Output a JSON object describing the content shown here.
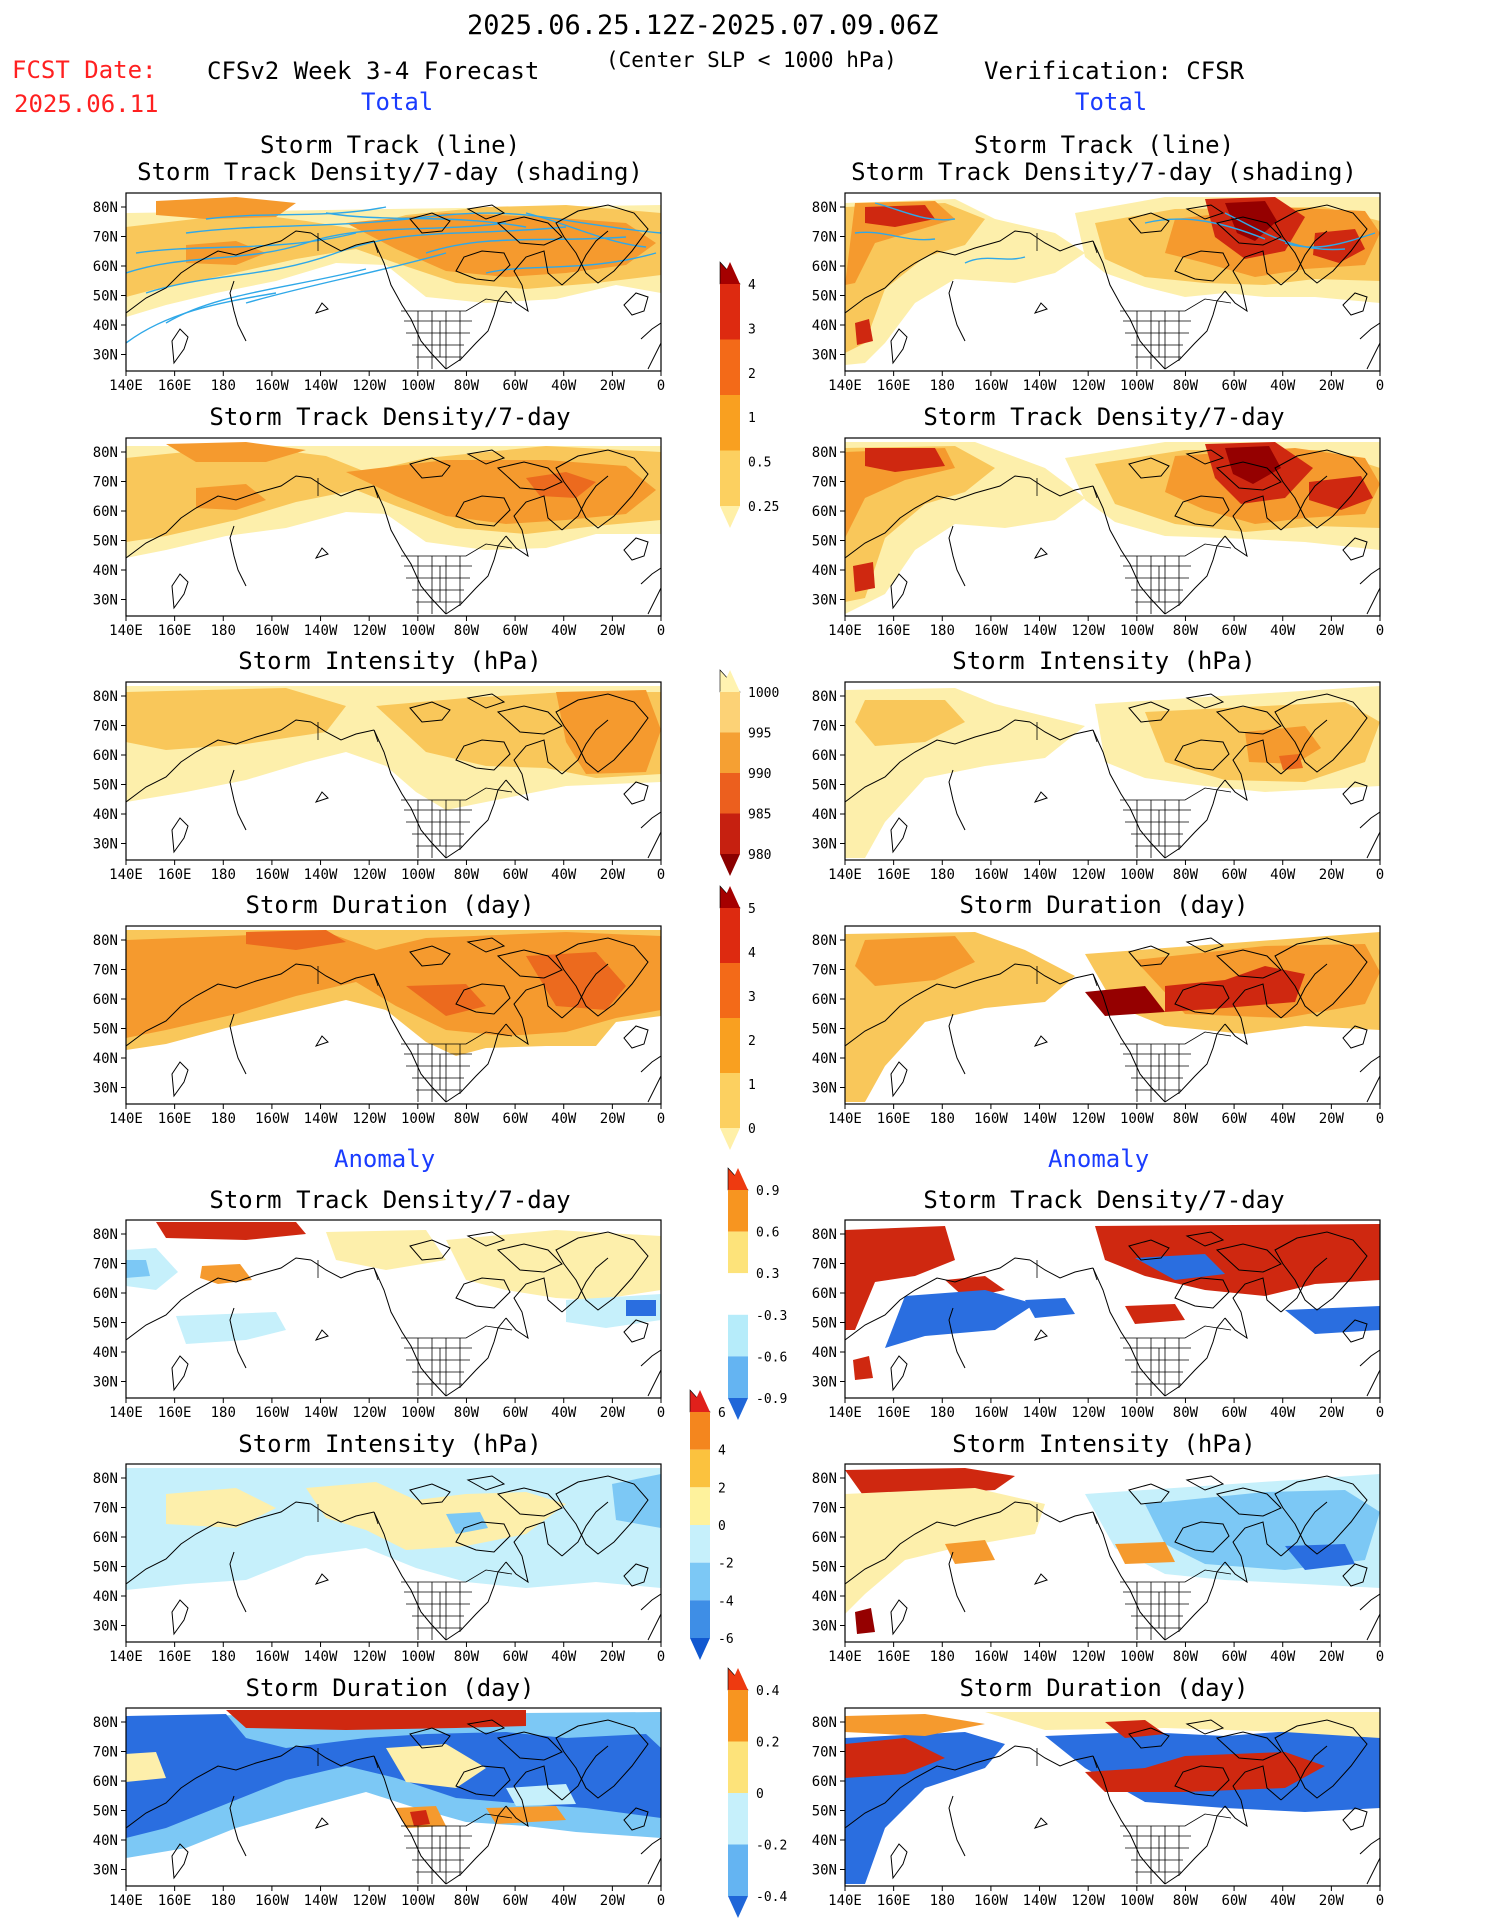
{
  "header": {
    "period": "2025.06.25.12Z-2025.07.09.06Z",
    "fcst_label": "FCST Date:",
    "fcst_date": "2025.06.11",
    "model": "CFSv2 Week 3-4 Forecast",
    "condition": "(Center SLP < 1000 hPa)",
    "verification": "Verification: CFSR"
  },
  "sections": {
    "total": "Total",
    "anomaly": "Anomaly"
  },
  "axes": {
    "lon_labels": [
      "140E",
      "160E",
      "180",
      "160W",
      "140W",
      "120W",
      "100W",
      "80W",
      "60W",
      "40W",
      "20W",
      "0"
    ],
    "lat_labels": [
      "80N",
      "70N",
      "60N",
      "50N",
      "40N",
      "30N"
    ]
  },
  "titles": {
    "track_line": "Storm Track (line)",
    "track_shading": "Storm Track Density/7-day (shading)",
    "density": "Storm Track Density/7-day",
    "intensity": "Storm Intensity (hPa)",
    "duration": "Storm Duration (day)"
  },
  "colorbars": {
    "density": {
      "labels": [
        "4",
        "3",
        "2",
        "1",
        "0.5",
        "0.25"
      ],
      "colors": [
        "#a50000",
        "#dd2a10",
        "#f36a18",
        "#f9a020",
        "#fcd060",
        "#fff0a8"
      ]
    },
    "intensity": {
      "labels": [
        "1000",
        "995",
        "990",
        "985",
        "980"
      ],
      "colors": [
        "#fff3b0",
        "#fcd276",
        "#f5a033",
        "#ec5f1e",
        "#c62010",
        "#8a0000"
      ]
    },
    "duration": {
      "labels": [
        "5",
        "4",
        "3",
        "2",
        "1",
        "0"
      ],
      "colors": [
        "#a50000",
        "#dd2a10",
        "#f36a18",
        "#f9a020",
        "#fcd060",
        "#fff0a8"
      ]
    },
    "anom_density": {
      "labels": [
        "0.9",
        "0.6",
        "0.3",
        "-0.3",
        "-0.6",
        "-0.9"
      ],
      "colors": [
        "#ee3a10",
        "#f79520",
        "#fde37a",
        "#ffffff",
        "#b6ecfa",
        "#64b4f2",
        "#1f66d8"
      ]
    },
    "anom_intensity": {
      "labels": [
        "6",
        "4",
        "2",
        "0",
        "-2",
        "-4",
        "-6"
      ],
      "colors": [
        "#e0201b",
        "#f4861e",
        "#fbc23e",
        "#fef29c",
        "#c6f0fb",
        "#7cc8f5",
        "#3e8ee6",
        "#1158d0"
      ]
    },
    "anom_duration": {
      "labels": [
        "0.4",
        "0.2",
        "0",
        "-0.2",
        "-0.4"
      ],
      "colors": [
        "#ee3a10",
        "#f79520",
        "#fde37a",
        "#c6f0fb",
        "#64b4f2",
        "#1f66d8"
      ]
    }
  },
  "colors": {
    "warm_light": "#fdefab",
    "warm_mid": "#f9c75a",
    "warm_orange": "#f59a2e",
    "warm_deep": "#ec6a1e",
    "warm_red": "#cf2810",
    "warm_dark": "#950000",
    "cool_light": "#c6f0fb",
    "cool_mid": "#7cc8f5",
    "cool_deep": "#2a6ee0",
    "track_line": "#2fa8e8",
    "title_red": "#ff2020",
    "title_blue": "#1a3cff"
  }
}
